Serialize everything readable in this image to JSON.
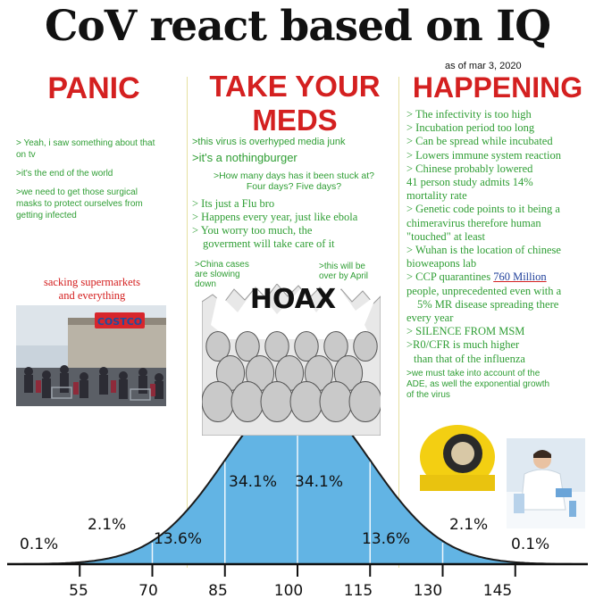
{
  "title": "CoV react based on IQ",
  "as_of": "as of mar 3, 2020",
  "headers": {
    "panic": "PANIC",
    "meds_line1": "TAKE YOUR",
    "meds_line2": "MEDS",
    "happening": "HAPPENING"
  },
  "panic": {
    "lines": [
      "> Yeah, i saw something about that",
      "on tv",
      "",
      ">it's the end of the world",
      "",
      ">we need to get those surgical",
      "masks to protect ourselves from",
      "getting infected"
    ],
    "supermarket_line1": "sacking supermarkets",
    "supermarket_line2": "and everything",
    "costco_sign": "COSTCO"
  },
  "meds": {
    "l1": ">this virus is overhyped media junk",
    "l2": ">it's a nothingburger",
    "l3": ">How many days has it been stuck at?",
    "l4": "Four days? Five days?",
    "l5": "> Its just a Flu bro",
    "l6": "> Happens every year, just like ebola",
    "l7": "> You worry too much, the",
    "l8": "goverment will take care of it",
    "china1": ">China cases",
    "china2": "are slowing",
    "china3": "down",
    "april1": ">this will be",
    "april2": "over by April",
    "hoax": "HOAX"
  },
  "happening": {
    "lines": [
      "> The infectivity is too high",
      "> Incubation period too long",
      "> Can be spread while incubated",
      "> Lowers immune system reaction",
      "> Chinese probably lowered",
      "41 person study admits 14%",
      "mortality rate",
      "> Genetic code points to it being a",
      "chimeravirus therefore human",
      "\"touched\" at least",
      "> Wuhan is the location of chinese",
      "bioweapons lab"
    ],
    "ccp_pre": "> CCP quarantines ",
    "ccp_num": "760 Million",
    "ccp_lines": [
      "people, unprecedented even with a",
      "5% MR disease spreading there",
      "every year",
      "> SILENCE FROM MSM",
      ">R0/CFR is much higher",
      "than that of the influenza"
    ],
    "small_lines": [
      ">we must take into account of the",
      "ADE, as well the exponential growth",
      "of the virus"
    ]
  },
  "chart_data": {
    "type": "area",
    "x_ticks": [
      "55",
      "70",
      "85",
      "100",
      "115",
      "130",
      "145"
    ],
    "segments": [
      {
        "range": "<70",
        "percent": "0.1%"
      },
      {
        "range": "55-70",
        "percent": "2.1%"
      },
      {
        "range": "70-85",
        "percent": "13.6%"
      },
      {
        "range": "85-100",
        "percent": "34.1%"
      },
      {
        "range": "100-115",
        "percent": "34.1%"
      },
      {
        "range": "115-130",
        "percent": "13.6%"
      },
      {
        "range": "130-145",
        "percent": "2.1%"
      },
      {
        "range": ">145",
        "percent": "0.1%"
      }
    ],
    "mean": 100,
    "sd": 15,
    "fill_color": "#62b4e4"
  },
  "colors": {
    "green_text": "#2f9e34",
    "red_header": "#d42020",
    "curve_fill": "#62b4e4"
  }
}
